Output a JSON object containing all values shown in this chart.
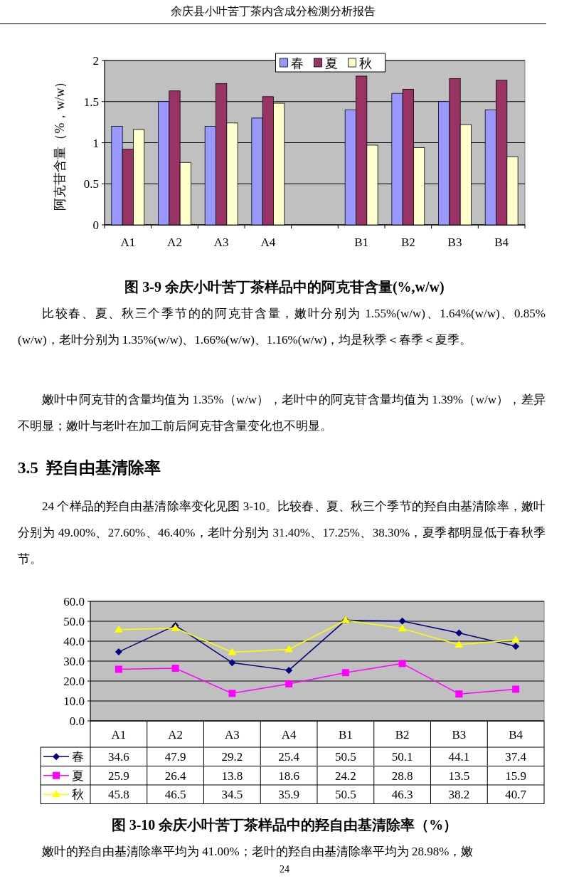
{
  "chart_data": [
    {
      "type": "bar",
      "title": "图 3-9  余庆小叶苦丁茶样品中的阿克苷含量(%,w/w)",
      "ylabel": "阿克苷含量（%，w/w）",
      "annotations": [
        "余庆县小叶苦丁茶内含成分检测分析报告",
        "比较春、夏、秋三个季节的的阿克苷含量，嫩叶分别为 1.55%(w/w)、1.64%(w/w)、0.85%(w/w)，老叶分别为 1.35%(w/w)、1.66%(w/w)、1.16%(w/w)，均是秋季＜春季＜夏季。",
        "嫩叶中阿克苷的含量均值为 1.35%（w/w），老叶中的阿克苷含量均值为 1.39%（w/w），差异不明显；嫩叶与老叶在加工前后阿克苷含量变化也不明显。"
      ],
      "categories": [
        "A1",
        "A2",
        "A3",
        "A4",
        null,
        "B1",
        "B2",
        "B3",
        "B4"
      ],
      "series": [
        {
          "name": "春",
          "color": "#9999ff",
          "values": [
            1.2,
            1.5,
            1.2,
            1.3,
            null,
            1.4,
            1.6,
            1.5,
            1.4
          ]
        },
        {
          "name": "夏",
          "color": "#993366",
          "values": [
            0.92,
            1.63,
            1.72,
            1.56,
            null,
            1.81,
            1.65,
            1.78,
            1.76
          ]
        },
        {
          "name": "秋",
          "color": "#ffffcc",
          "values": [
            1.16,
            0.76,
            1.24,
            1.48,
            null,
            0.97,
            0.94,
            1.22,
            0.83
          ]
        }
      ],
      "ylim": [
        0,
        2
      ],
      "yticks": [
        0,
        0.5,
        1,
        1.5,
        2
      ],
      "grid": "y",
      "legend": "top"
    },
    {
      "type": "line",
      "title": "图 3-10  余庆小叶苦丁茶样品中的羟自由基清除率（%）",
      "annotations": [
        "3.5  羟自由基清除率",
        "24 个样品的羟自由基清除率变化见图 3-10。比较春、夏、秋三个季节的羟自由基清除率，嫩叶分别为 49.00%、27.60%、46.40%，老叶分别为 31.40%、17.25%、38.30%，夏季都明显低于春秋季节。",
        "嫩叶的羟自由基清除率平均为 41.00%；老叶的羟自由基清除率平均为 28.98%，嫩",
        "24"
      ],
      "categories": [
        "A1",
        "A2",
        "A3",
        "A4",
        "B1",
        "B2",
        "B3",
        "B4"
      ],
      "series": [
        {
          "name": "春",
          "color": "#000080",
          "marker": "diamond",
          "values": [
            34.6,
            47.9,
            29.2,
            25.4,
            50.5,
            50.1,
            44.1,
            37.4
          ]
        },
        {
          "name": "夏",
          "color": "#ff00ff",
          "marker": "square",
          "values": [
            25.9,
            26.4,
            13.8,
            18.6,
            24.2,
            28.8,
            13.5,
            15.9
          ]
        },
        {
          "name": "秋",
          "color": "#ffff00",
          "marker": "triangle",
          "values": [
            45.8,
            46.5,
            34.5,
            35.9,
            50.5,
            46.3,
            38.2,
            40.7
          ]
        }
      ],
      "ylim": [
        0,
        60
      ],
      "yticks": [
        {
          "value": 0,
          "label": "0.0"
        },
        {
          "value": 10,
          "label": "10.0"
        },
        {
          "value": 20,
          "label": "20.0"
        },
        {
          "value": 30,
          "label": "30.0"
        },
        {
          "value": 40,
          "label": "40.0"
        },
        {
          "value": 50,
          "label": "50.0"
        },
        {
          "value": 60,
          "label": "60.0"
        }
      ],
      "grid": "y",
      "legend": "bottom",
      "data_labels": true
    }
  ]
}
